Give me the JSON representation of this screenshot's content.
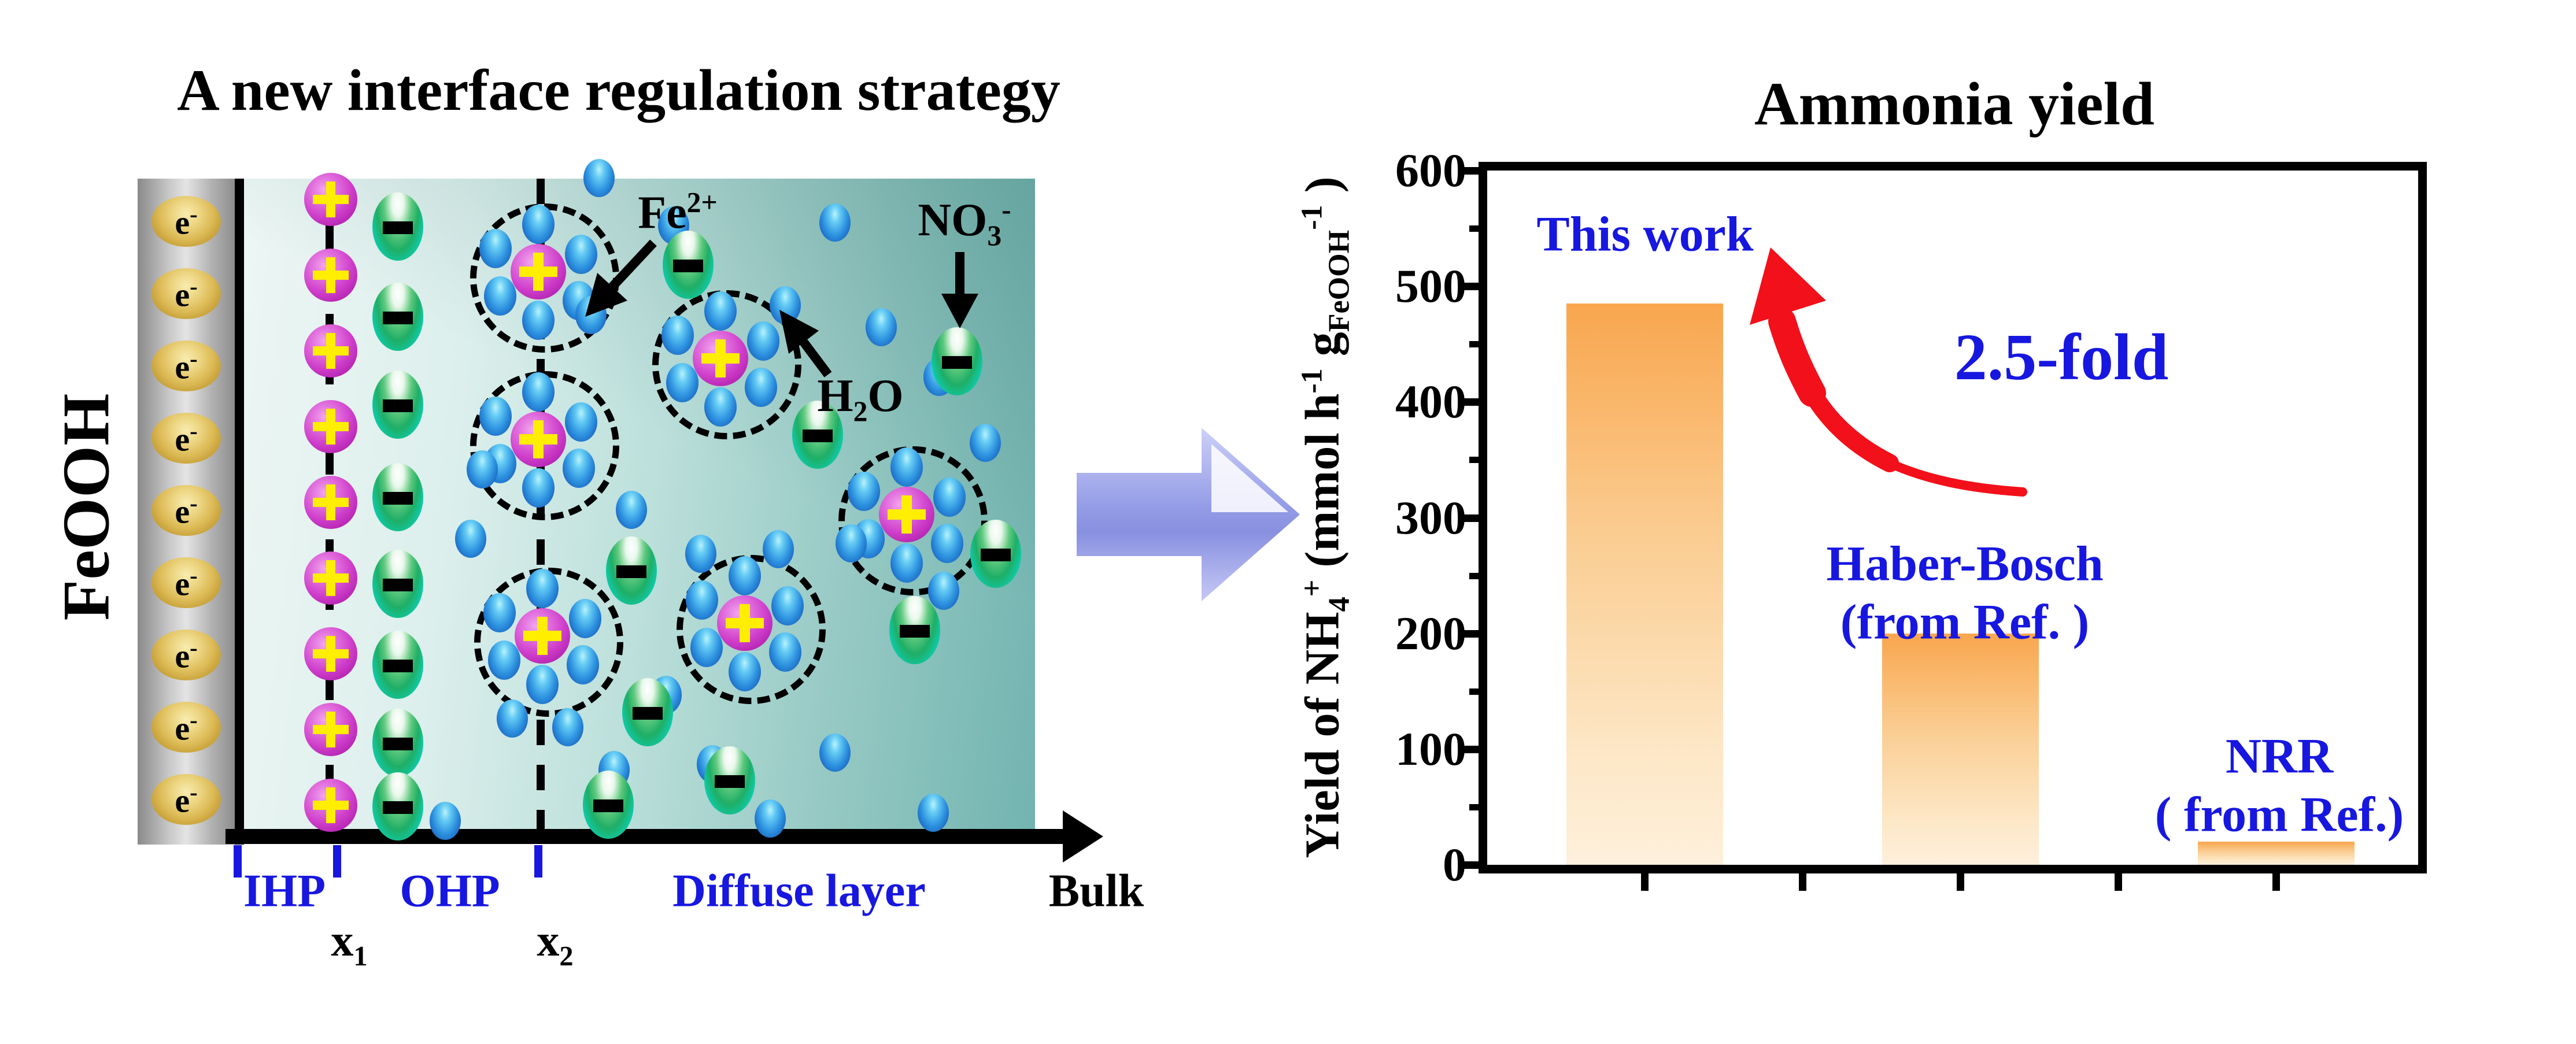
{
  "left_panel": {
    "title": "A new interface regulation strategy",
    "electrode_label": "FeOOH",
    "symbols": {
      "electron": "e",
      "electron_charge": "-",
      "cation_charge": "+",
      "anion_charge": "−"
    },
    "fe2_label": [
      {
        "t": "Fe"
      },
      {
        "sup": "2+"
      }
    ],
    "h2o_label": [
      {
        "t": "H"
      },
      {
        "sub": "2"
      },
      {
        "t": "O"
      }
    ],
    "no3_label": [
      {
        "t": "NO"
      },
      {
        "sub": "3"
      },
      {
        "sup": "-"
      }
    ],
    "region_labels": {
      "ihp": "IHP",
      "ohp": "OHP",
      "diffuse": "Diffuse layer",
      "bulk": "Bulk"
    },
    "x1_label": [
      {
        "t": "x"
      },
      {
        "sub": "1"
      }
    ],
    "x2_label": [
      {
        "t": "x"
      },
      {
        "sub": "2"
      }
    ]
  },
  "right_panel": {
    "title": "Ammonia yield",
    "fold_annotation": "2.5-fold",
    "bar_labels": [
      [
        "This work"
      ],
      [
        "Haber-Bosch",
        "(from Ref. )"
      ],
      [
        "NRR",
        "( from Ref.)"
      ]
    ],
    "y_axis_label": [
      {
        "t": "Yield of NH"
      },
      {
        "sub": "4"
      },
      {
        "sup": "+"
      },
      {
        "t": " (mmol h"
      },
      {
        "sup": "-1"
      },
      {
        "t": " g"
      },
      {
        "sub": "FeOOH"
      },
      {
        "sup": "-1"
      },
      {
        "t": " )"
      }
    ]
  },
  "chart_data": {
    "type": "bar",
    "title": "Ammonia yield",
    "categories": [
      "This work",
      "Haber-Bosch (from Ref. )",
      "NRR ( from Ref.)"
    ],
    "values": [
      485,
      200,
      20
    ],
    "ylabel": "Yield of NH4+ (mmol h-1 gFeOOH-1)",
    "xlabel": "",
    "ylim": [
      0,
      600
    ],
    "yticks": [
      0,
      100,
      200,
      300,
      400,
      500,
      600
    ],
    "yticks_minor": [
      50,
      150,
      250,
      350,
      450,
      550
    ],
    "grid": false,
    "legend_position": "none",
    "annotation": "2.5-fold"
  },
  "colors": {
    "label_blue": "#1717E0",
    "arrow_red": "#F2101A",
    "bar_top": "#F9A64E",
    "bar_bottom": "#FEF0DC",
    "solution_dark": "#72B4B0",
    "solution_light": "#EDF6F4",
    "block_arrow_lavender": "#959DE7",
    "cation_magenta": "#CF3FCB",
    "anion_green": "#1FAE66",
    "water_blue": "#2E93E0",
    "electron_gold": "#DCBA55",
    "axis_black": "#000000"
  }
}
